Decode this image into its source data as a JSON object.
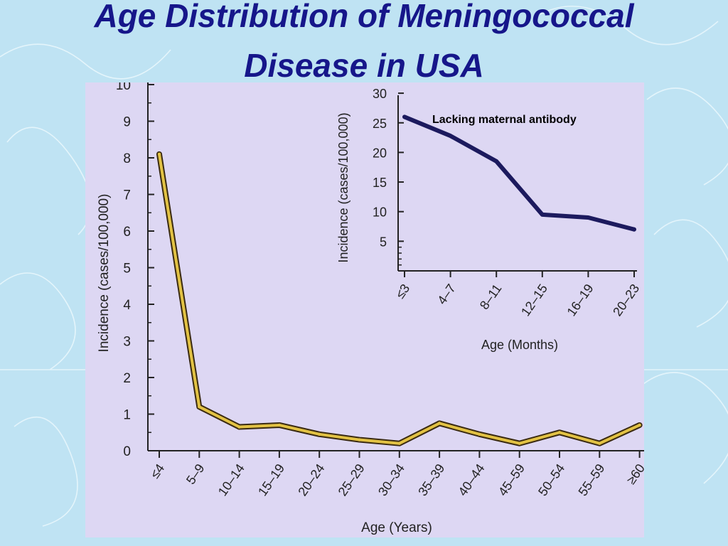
{
  "slide": {
    "title_line1": "Age Distribution of Meningococcal",
    "title_line2": "Disease in USA"
  },
  "colors": {
    "background": "#bfe3f3",
    "title": "#16168a",
    "plot_area": "#ddd7f3",
    "main_line_outline": "#3a2a10",
    "main_line_fill": "#e2c244",
    "inset_line": "#1c1a5e"
  },
  "chart_data": [
    {
      "type": "line",
      "xlabel": "Age (Years)",
      "ylabel": "Incidence (cases/100,000)",
      "ylim": [
        0,
        10
      ],
      "yticks": [
        "0",
        "1",
        "2",
        "3",
        "4",
        "5",
        "6",
        "7",
        "8",
        "9",
        "10"
      ],
      "categories": [
        "≤4",
        "5–9",
        "10–14",
        "15–19",
        "20–24",
        "25–29",
        "30–34",
        "35–39",
        "40–44",
        "45–59",
        "50–54",
        "55–59",
        "≥60"
      ],
      "values": [
        8.1,
        1.2,
        0.65,
        0.7,
        0.45,
        0.3,
        0.2,
        0.75,
        0.45,
        0.2,
        0.5,
        0.2,
        0.7
      ],
      "grid": false
    },
    {
      "type": "line",
      "xlabel": "Age (Months)",
      "ylabel": "Incidence (cases/100,000)",
      "ylim": [
        0,
        30
      ],
      "yticks": [
        "5",
        "10",
        "15",
        "20",
        "25",
        "30"
      ],
      "categories": [
        "≤3",
        "4–7",
        "8–11",
        "12–15",
        "16–19",
        "20–23"
      ],
      "values": [
        26,
        22.8,
        18.5,
        9.5,
        9,
        7
      ],
      "annotation": "Lacking maternal antibody",
      "grid": false
    }
  ]
}
